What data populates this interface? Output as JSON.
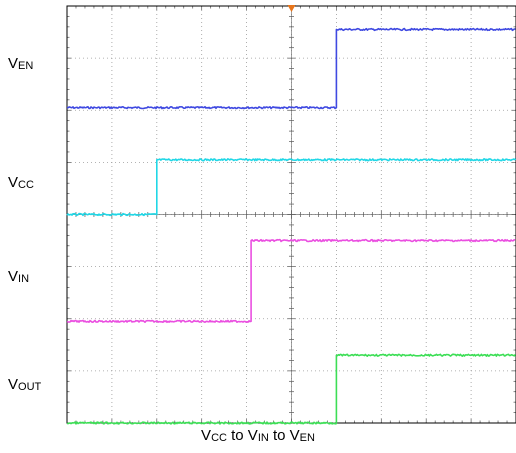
{
  "chart_data": {
    "type": "line",
    "title": "",
    "xlabel": {
      "parts": [
        [
          "V",
          "CC"
        ],
        [
          " to V",
          "IN"
        ],
        [
          " to V",
          "EN"
        ]
      ]
    },
    "ylabel": "",
    "x": [
      0,
      10
    ],
    "xlim": [
      0,
      10
    ],
    "grid": true,
    "grid_divisions": {
      "x": 10,
      "y": 8
    },
    "trigger_marker_x": 5,
    "channel_marker": "EN",
    "series": [
      {
        "key": "EN",
        "name": {
          "base": "V",
          "sub": "EN"
        },
        "color": "#3f49e1",
        "edge_x": 6.0,
        "low_div": 6.05,
        "high_div": 7.55
      },
      {
        "key": "CC",
        "name": {
          "base": "V",
          "sub": "CC"
        },
        "color": "#21d7e6",
        "edge_x": 2.0,
        "low_div": 4.0,
        "high_div": 5.05
      },
      {
        "key": "IN",
        "name": {
          "base": "V",
          "sub": "IN"
        },
        "color": "#ea4fe0",
        "edge_x": 4.1,
        "low_div": 1.95,
        "high_div": 3.5
      },
      {
        "key": "OUT",
        "name": {
          "base": "V",
          "sub": "OUT"
        },
        "color": "#3cde55",
        "edge_x": 6.0,
        "low_div": 0.0,
        "high_div": 1.3
      }
    ]
  }
}
